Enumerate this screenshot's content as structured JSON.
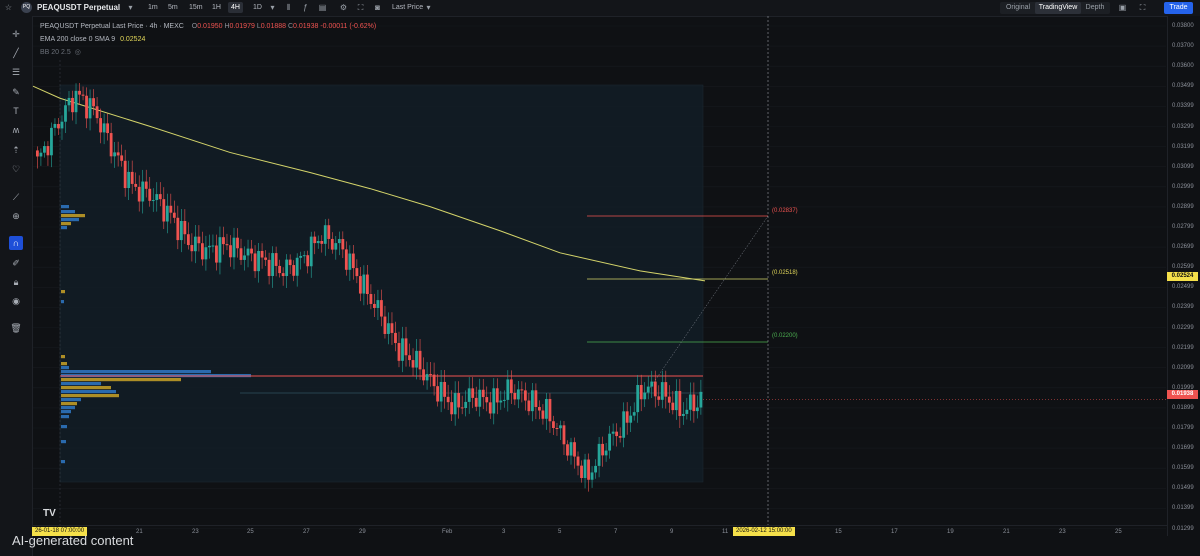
{
  "toolbar": {
    "symbol": "PEAQUSDT Perpetual",
    "timeframes": [
      {
        "label": "1m",
        "active": false
      },
      {
        "label": "5m",
        "active": false
      },
      {
        "label": "15m",
        "active": false
      },
      {
        "label": "1H",
        "active": false
      },
      {
        "label": "4H",
        "active": true
      },
      {
        "label": "1D",
        "active": false
      }
    ],
    "price_source": "Last Price",
    "views": [
      {
        "label": "Original",
        "active": false
      },
      {
        "label": "TradingView",
        "active": true
      },
      {
        "label": "Depth",
        "active": false
      }
    ],
    "trade_label": "Trade",
    "colors": {
      "accent": "#2563eb",
      "up": "#26a69a",
      "down": "#ef5350",
      "ema": "#d4d46a"
    }
  },
  "legend": {
    "title": "PEAQUSDT Perpetual Last Price · 4h · MEXC",
    "o_label": "O",
    "o": "0.01950",
    "h_label": "H",
    "h": "0.01979",
    "l_label": "L",
    "l": "0.01888",
    "c_label": "C",
    "c": "0.01938",
    "change": "-0.00011 (-0.62%)",
    "ema_label": "EMA 200 close 0 SMA 9",
    "ema_value": "0.02524",
    "bb_label": "BB 20 2.5"
  },
  "price_axis": {
    "labels": [
      "0.03800",
      "0.03700",
      "0.03600",
      "0.03499",
      "0.03399",
      "0.03299",
      "0.03199",
      "0.03099",
      "0.02999",
      "0.02899",
      "0.02799",
      "0.02699",
      "0.02599",
      "0.02499",
      "0.02399",
      "0.02299",
      "0.02199",
      "0.02099",
      "0.01999",
      "0.01899",
      "0.01799",
      "0.01699",
      "0.01599",
      "0.01499",
      "0.01399",
      "0.01299"
    ],
    "ema_tag": "0.02524",
    "last_tag": "0.01938"
  },
  "time_axis": {
    "labels": [
      "21",
      "23",
      "25",
      "27",
      "29",
      "Feb",
      "3",
      "5",
      "7",
      "9",
      "11",
      "15",
      "17",
      "19",
      "21",
      "23",
      "25"
    ],
    "start_tag": "26-01-18  07:00:00",
    "cursor_tag": "2026-02-12  15:00:00"
  },
  "fib_levels": [
    "(0.02837)",
    "(0.02518)",
    "(0.02200)"
  ],
  "watermark": "AI-generated content",
  "chart_data": {
    "type": "candlestick",
    "series": [
      {
        "name": "EMA 200",
        "values": [
          0.035,
          0.0344,
          0.033,
          0.0317,
          0.0307,
          0.0299,
          0.029,
          0.0278,
          0.0267,
          0.0258,
          0.0253
        ]
      }
    ],
    "candles_close": [
      0.0312,
      0.033,
      0.0346,
      0.0338,
      0.0318,
      0.03,
      0.0296,
      0.0286,
      0.0272,
      0.0268,
      0.0271,
      0.0266,
      0.0263,
      0.0258,
      0.0264,
      0.0276,
      0.027,
      0.0253,
      0.0238,
      0.022,
      0.0212,
      0.02,
      0.019,
      0.0196,
      0.0192,
      0.0199,
      0.0193,
      0.0186,
      0.017,
      0.0155,
      0.0172,
      0.0182,
      0.02,
      0.0197,
      0.0188,
      0.0194
    ],
    "ylim": [
      0.01299,
      0.038
    ],
    "last_price": 0.01938,
    "ema_value": 0.02524
  }
}
